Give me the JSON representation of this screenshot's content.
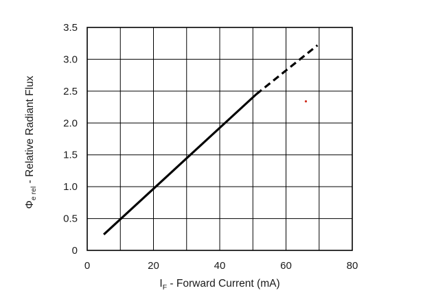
{
  "chart_data": {
    "type": "line",
    "xlabel": {
      "symbol": "I",
      "subscript": "F",
      "text": " - Forward Current (mA)"
    },
    "ylabel": {
      "symbol": "Φ",
      "subscript": "e rel",
      "text": " - Relative Radiant Flux"
    },
    "xlim": [
      0,
      80
    ],
    "ylim": [
      0,
      3.5
    ],
    "x_ticks": [
      0,
      20,
      40,
      60,
      80
    ],
    "x_tick_labels": [
      "0",
      "20",
      "40",
      "60",
      "80"
    ],
    "y_ticks": [
      0,
      0.5,
      1.0,
      1.5,
      2.0,
      2.5,
      3.0,
      3.5
    ],
    "y_tick_labels": [
      "0",
      "0.5",
      "1.0",
      "1.5",
      "2.0",
      "2.5",
      "3.0",
      "3.5"
    ],
    "grid": true,
    "x_grid_step": 10,
    "y_grid_step": 0.5,
    "series": [
      {
        "segments": [
          {
            "style": "solid",
            "x": [
              5,
              51
            ],
            "y": [
              0.25,
              2.45
            ]
          },
          {
            "style": "dashed",
            "x": [
              51,
              69.5
            ],
            "y": [
              2.45,
              3.22
            ]
          }
        ],
        "color": "#000000"
      }
    ],
    "annotations": [
      {
        "type": "dot",
        "x": 66,
        "y": 2.34,
        "color": "#d03020"
      }
    ]
  }
}
